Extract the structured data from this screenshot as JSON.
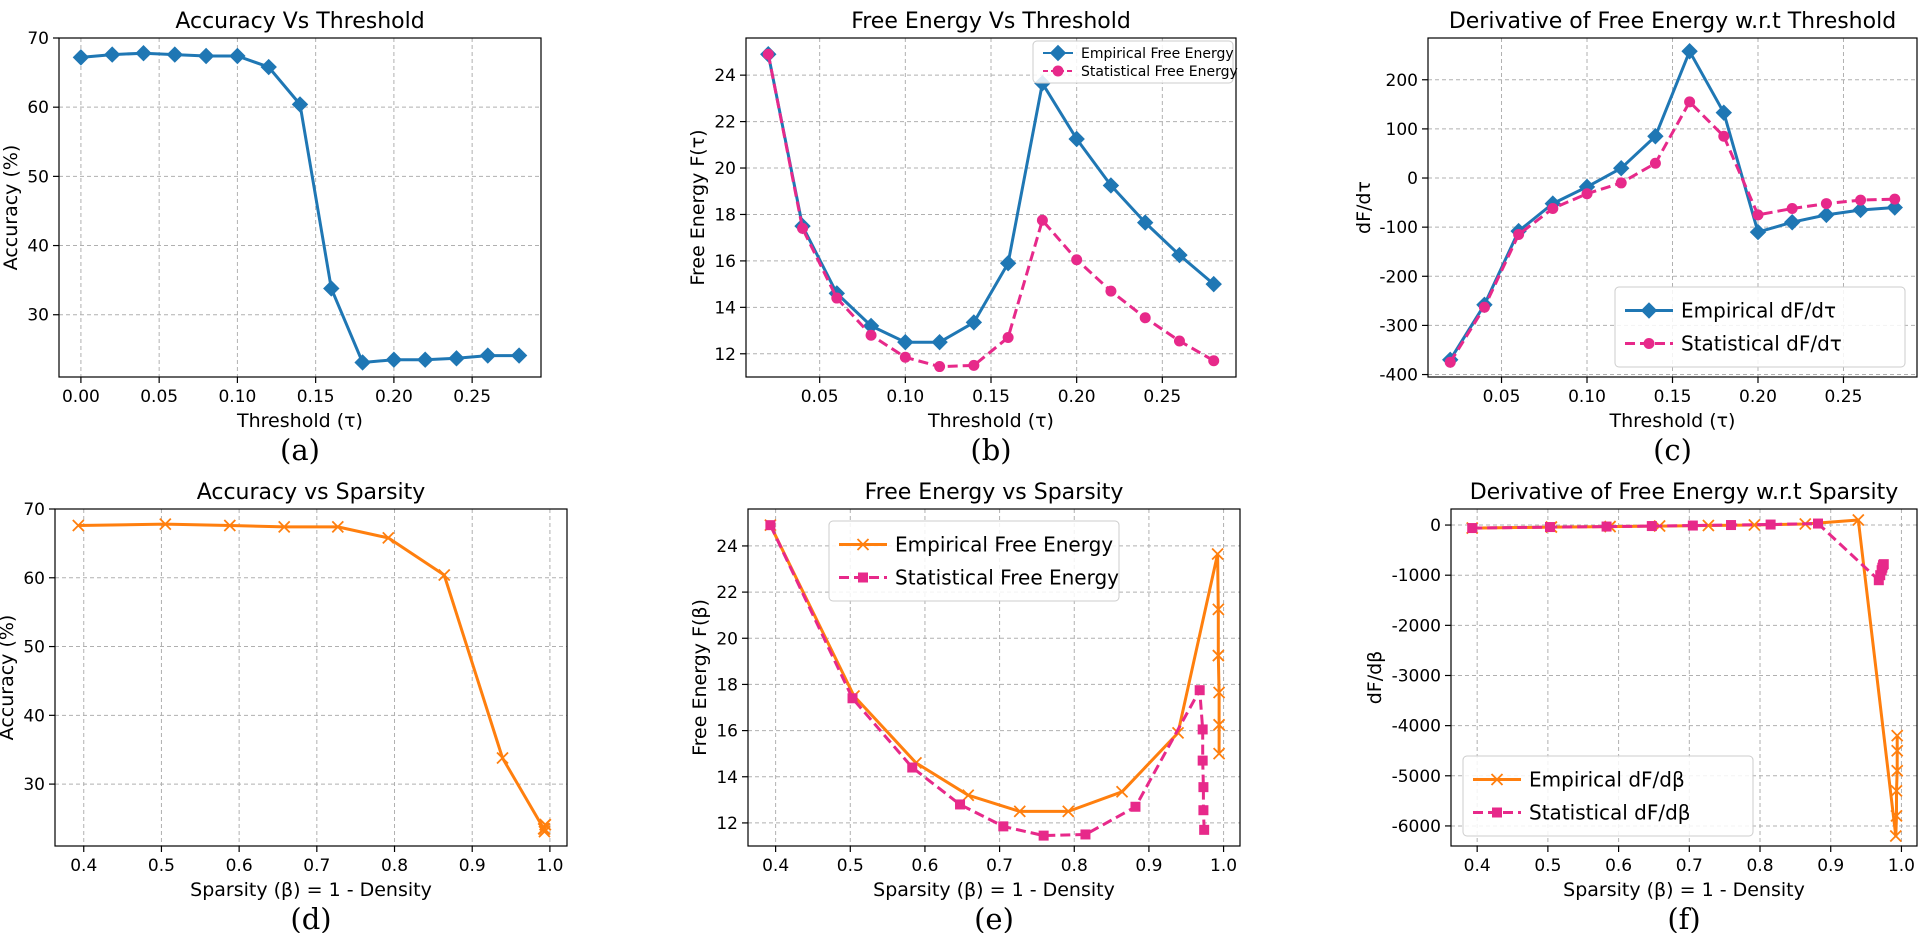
{
  "chart_data": [
    {
      "type": "line",
      "title": "Accuracy Vs Threshold",
      "xlabel": "Threshold (τ)",
      "ylabel": "Accuracy (%)",
      "caption": "(a)",
      "xlim": [
        -0.014,
        0.294
      ],
      "ylim": [
        21,
        70
      ],
      "xticks": [
        "0.00",
        "0.05",
        "0.10",
        "0.15",
        "0.20",
        "0.25"
      ],
      "yticks": [
        "30",
        "40",
        "50",
        "60",
        "70"
      ],
      "series": [
        {
          "name": "Accuracy",
          "color": "#1f77b4",
          "marker": "diamond",
          "dash": "solid",
          "x": [
            0,
            0.02,
            0.04,
            0.06,
            0.08,
            0.1,
            0.12,
            0.14,
            0.16,
            0.18,
            0.2,
            0.22,
            0.24,
            0.26,
            0.28
          ],
          "y": [
            67.2,
            67.6,
            67.8,
            67.6,
            67.4,
            67.4,
            65.8,
            60.4,
            33.8,
            23.1,
            23.5,
            23.5,
            23.7,
            24.1,
            24.1
          ]
        }
      ]
    },
    {
      "type": "line",
      "title": "Free Energy Vs Threshold",
      "xlabel": "Threshold (τ)",
      "ylabel": "Free Energy F(τ)",
      "caption": "(b)",
      "xlim": [
        0.007,
        0.293
      ],
      "ylim": [
        11.0,
        25.6
      ],
      "xticks": [
        "0.05",
        "0.10",
        "0.15",
        "0.20",
        "0.25"
      ],
      "yticks": [
        "12",
        "14",
        "16",
        "18",
        "20",
        "22",
        "24"
      ],
      "legend": {
        "position": "top-right",
        "size": "small"
      },
      "series": [
        {
          "name": "Empirical Free Energy",
          "color": "#1f77b4",
          "marker": "diamond",
          "dash": "solid",
          "x": [
            0.02,
            0.04,
            0.06,
            0.08,
            0.1,
            0.12,
            0.14,
            0.16,
            0.18,
            0.2,
            0.22,
            0.24,
            0.26,
            0.28
          ],
          "y": [
            24.9,
            17.5,
            14.6,
            13.2,
            12.5,
            12.5,
            13.35,
            15.9,
            23.65,
            21.25,
            19.25,
            17.65,
            16.25,
            15.0
          ]
        },
        {
          "name": "Statistical Free Energy",
          "color": "#e7298a",
          "marker": "circle",
          "dash": "dashed",
          "x": [
            0.02,
            0.04,
            0.06,
            0.08,
            0.1,
            0.12,
            0.14,
            0.16,
            0.18,
            0.2,
            0.22,
            0.24,
            0.26,
            0.28
          ],
          "y": [
            24.9,
            17.4,
            14.4,
            12.8,
            11.85,
            11.45,
            11.5,
            12.7,
            17.75,
            16.05,
            14.7,
            13.55,
            12.55,
            11.7
          ]
        }
      ]
    },
    {
      "type": "line",
      "title": "Derivative of Free Energy w.r.t Threshold",
      "xlabel": "Threshold (τ)",
      "ylabel": "dF/dτ",
      "caption": "(c)",
      "xlim": [
        0.007,
        0.293
      ],
      "ylim": [
        -405,
        285
      ],
      "xticks": [
        "0.05",
        "0.10",
        "0.15",
        "0.20",
        "0.25"
      ],
      "yticks": [
        "-400",
        "-300",
        "-200",
        "-100",
        "0",
        "100",
        "200"
      ],
      "legend": {
        "position": "bottom-right",
        "size": "large"
      },
      "series": [
        {
          "name": "Empirical dF/dτ",
          "color": "#1f77b4",
          "marker": "diamond",
          "dash": "solid",
          "x": [
            0.02,
            0.04,
            0.06,
            0.08,
            0.1,
            0.12,
            0.14,
            0.16,
            0.18,
            0.2,
            0.22,
            0.24,
            0.26,
            0.28
          ],
          "y": [
            -370,
            -258,
            -108,
            -52,
            -18,
            20,
            85,
            258,
            133,
            -110,
            -90,
            -75,
            -65,
            -60
          ]
        },
        {
          "name": "Statistical dF/dτ",
          "color": "#e7298a",
          "marker": "circle",
          "dash": "dashed",
          "x": [
            0.02,
            0.04,
            0.06,
            0.08,
            0.1,
            0.12,
            0.14,
            0.16,
            0.18,
            0.2,
            0.22,
            0.24,
            0.26,
            0.28
          ],
          "y": [
            -375,
            -263,
            -115,
            -62,
            -32,
            -10,
            30,
            155,
            85,
            -75,
            -62,
            -52,
            -45,
            -43
          ]
        }
      ]
    },
    {
      "type": "line",
      "title": "Accuracy vs Sparsity",
      "xlabel": "Sparsity (β) = 1 - Density",
      "ylabel": "Accuracy (%)",
      "caption": "(d)",
      "xlim": [
        0.363,
        1.022
      ],
      "ylim": [
        21,
        70
      ],
      "xticks": [
        "0.4",
        "0.5",
        "0.6",
        "0.7",
        "0.8",
        "0.9",
        "1.0"
      ],
      "yticks": [
        "30",
        "40",
        "50",
        "60",
        "70"
      ],
      "series": [
        {
          "name": "Accuracy",
          "color": "#ff7f0e",
          "marker": "x",
          "dash": "solid",
          "x": [
            0.393,
            0.505,
            0.588,
            0.658,
            0.727,
            0.792,
            0.864,
            0.939,
            0.992,
            0.993,
            0.993,
            0.994,
            0.994
          ],
          "y": [
            67.6,
            67.8,
            67.6,
            67.4,
            67.4,
            65.8,
            60.4,
            33.8,
            23.5,
            23.1,
            23.5,
            24.1,
            24.1
          ]
        }
      ]
    },
    {
      "type": "line",
      "title": "Free Energy vs Sparsity",
      "xlabel": "Sparsity (β) = 1 - Density",
      "ylabel": "Free Energy F(β)",
      "caption": "(e)",
      "xlim": [
        0.363,
        1.022
      ],
      "ylim": [
        11.0,
        25.6
      ],
      "xticks": [
        "0.4",
        "0.5",
        "0.6",
        "0.7",
        "0.8",
        "0.9",
        "1.0"
      ],
      "yticks": [
        "12",
        "14",
        "16",
        "18",
        "20",
        "22",
        "24"
      ],
      "legend": {
        "position": "top-center",
        "size": "large"
      },
      "series": [
        {
          "name": "Empirical Free Energy",
          "color": "#ff7f0e",
          "marker": "x",
          "dash": "solid",
          "x": [
            0.393,
            0.505,
            0.588,
            0.658,
            0.727,
            0.792,
            0.864,
            0.939,
            0.992,
            0.993,
            0.993,
            0.994,
            0.994,
            0.994
          ],
          "y": [
            24.9,
            17.5,
            14.6,
            13.2,
            12.5,
            12.5,
            13.35,
            15.9,
            23.65,
            21.25,
            19.25,
            17.65,
            16.25,
            15.0
          ]
        },
        {
          "name": "Statistical Free Energy",
          "color": "#e7298a",
          "marker": "square",
          "dash": "dashed",
          "x": [
            0.393,
            0.503,
            0.583,
            0.647,
            0.705,
            0.759,
            0.815,
            0.882,
            0.968,
            0.972,
            0.972,
            0.973,
            0.973,
            0.974
          ],
          "y": [
            24.9,
            17.4,
            14.4,
            12.8,
            11.85,
            11.45,
            11.5,
            12.7,
            17.75,
            16.05,
            14.7,
            13.55,
            12.55,
            11.7
          ]
        }
      ]
    },
    {
      "type": "line",
      "title": "Derivative of Free Energy w.r.t Sparsity",
      "xlabel": "Sparsity (β) = 1 - Density",
      "ylabel": "dF/dβ",
      "caption": "(f)",
      "xlim": [
        0.363,
        1.022
      ],
      "ylim": [
        -6400,
        320
      ],
      "xticks": [
        "0.4",
        "0.5",
        "0.6",
        "0.7",
        "0.8",
        "0.9",
        "1.0"
      ],
      "yticks": [
        "-6000",
        "-5000",
        "-4000",
        "-3000",
        "-2000",
        "-1000",
        "0"
      ],
      "legend": {
        "position": "bottom-left",
        "size": "large"
      },
      "series": [
        {
          "name": "Empirical dF/dβ",
          "color": "#ff7f0e",
          "marker": "x",
          "dash": "solid",
          "x": [
            0.393,
            0.505,
            0.588,
            0.658,
            0.727,
            0.792,
            0.864,
            0.939,
            0.992,
            0.993,
            0.993,
            0.994,
            0.994,
            0.994
          ],
          "y": [
            -60,
            -40,
            -30,
            -20,
            -10,
            0,
            20,
            100,
            -6200,
            -5800,
            -5300,
            -4900,
            -4500,
            -4200
          ]
        },
        {
          "name": "Statistical dF/dβ",
          "color": "#e7298a",
          "marker": "square",
          "dash": "dashed",
          "x": [
            0.393,
            0.503,
            0.583,
            0.647,
            0.705,
            0.759,
            0.815,
            0.882,
            0.968,
            0.97,
            0.972,
            0.973,
            0.974,
            0.975
          ],
          "y": [
            -60,
            -40,
            -30,
            -20,
            -10,
            0,
            10,
            30,
            -1100,
            -1000,
            -900,
            -850,
            -800,
            -780
          ]
        }
      ]
    }
  ]
}
